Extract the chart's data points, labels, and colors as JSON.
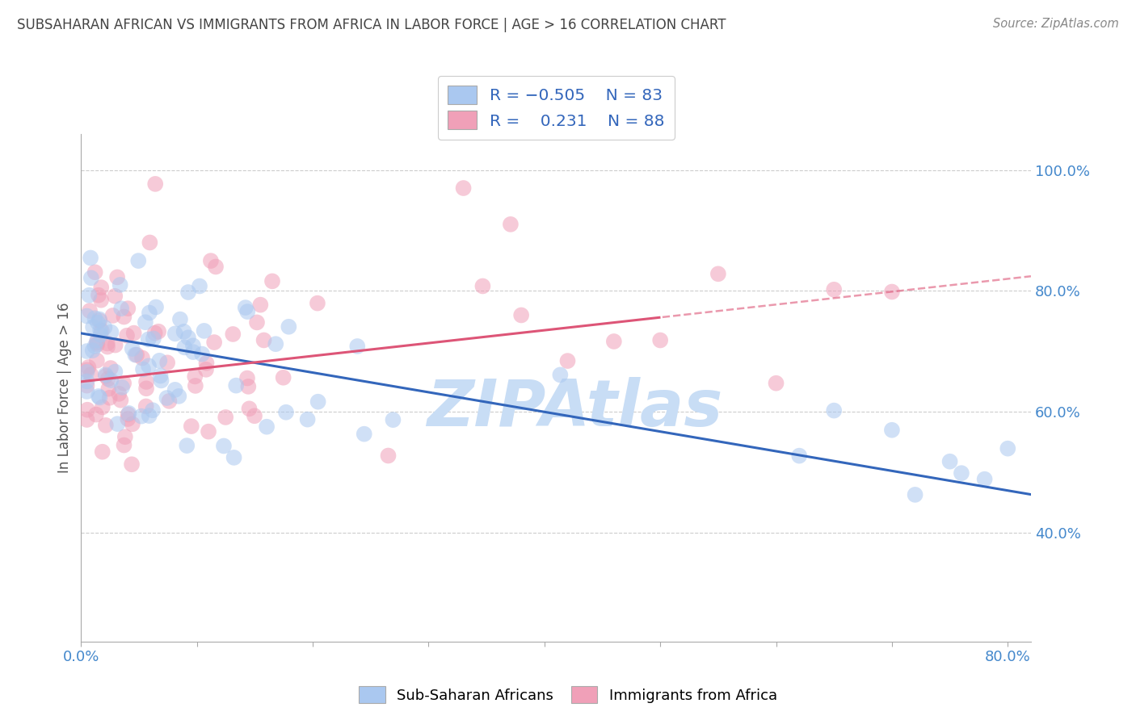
{
  "title": "SUBSAHARAN AFRICAN VS IMMIGRANTS FROM AFRICA IN LABOR FORCE | AGE > 16 CORRELATION CHART",
  "source": "Source: ZipAtlas.com",
  "ylabel": "In Labor Force | Age > 16",
  "xlim": [
    0.0,
    0.82
  ],
  "ylim": [
    0.22,
    1.06
  ],
  "xtick_positions": [
    0.0,
    0.1,
    0.2,
    0.3,
    0.4,
    0.5,
    0.6,
    0.7,
    0.8
  ],
  "xticklabels": [
    "0.0%",
    "",
    "",
    "",
    "",
    "",
    "",
    "",
    "80.0%"
  ],
  "ytick_positions": [
    0.4,
    0.6,
    0.8,
    1.0
  ],
  "ytick_labels": [
    "40.0%",
    "60.0%",
    "80.0%",
    "100.0%"
  ],
  "blue_color": "#aac8f0",
  "pink_color": "#f0a0b8",
  "blue_line_color": "#3366bb",
  "pink_line_color": "#dd5577",
  "r_blue": -0.505,
  "n_blue": 83,
  "r_pink": 0.231,
  "n_pink": 88,
  "watermark": "ZIPAtlas",
  "watermark_color": "#c8ddf5",
  "grid_color": "#cccccc",
  "background_color": "#ffffff",
  "title_color": "#444444",
  "axis_label_color": "#555555",
  "tick_label_color": "#4488cc",
  "dot_size": 200,
  "dot_alpha": 0.55
}
